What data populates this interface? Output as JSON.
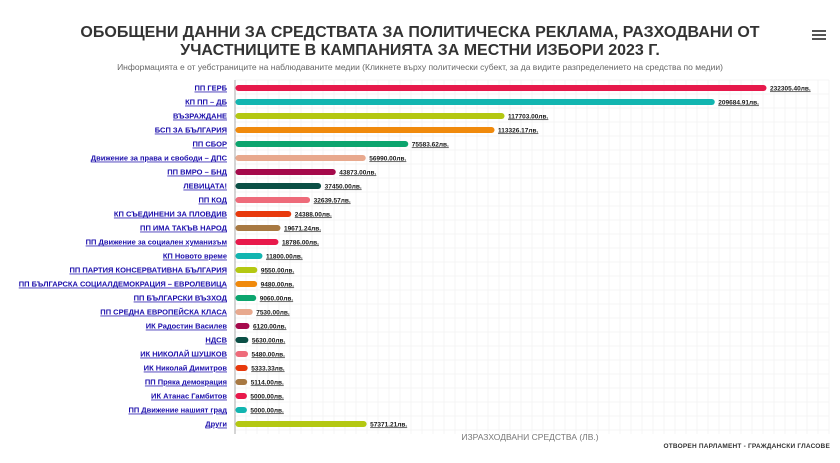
{
  "header": {
    "title": "ОБОБЩЕНИ ДАННИ ЗА СРЕДСТВАТА ЗА ПОЛИТИЧЕСКА РЕКЛАМА, РАЗХОДВАНИ ОТ УЧАСТНИЦИТЕ В КАМПАНИЯТА ЗА МЕСТНИ ИЗБОРИ 2023 Г.",
    "subtitle": "Информацията е от уебстраниците на наблюдаваните медии (Кликнете върху политически субект, за да видите разпределението на средства по медии)",
    "menu_icon": "hamburger-menu-icon"
  },
  "footer": {
    "credit": "ОТВОРЕН ПАРЛАМЕНТ - ГРАЖДАНСКИ ГЛАСОВЕ"
  },
  "chart_data": {
    "type": "bar",
    "orientation": "horizontal",
    "title": "ОБОБЩЕНИ ДАННИ ЗА СРЕДСТВАТА ЗА ПОЛИТИЧЕСКА РЕКЛАМА, РАЗХОДВАНИ ОТ УЧАСТНИЦИТЕ В КАМПАНИЯТА ЗА МЕСТНИ ИЗБОРИ 2023 Г.",
    "xlabel": "ИЗРАЗХОДВАНИ СРЕДСТВА (ЛВ.)",
    "ylabel": "",
    "grid": true,
    "xlim": [
      0,
      232305.4
    ],
    "categories": [
      "ПП ГЕРБ",
      "КП ПП – ДБ",
      "ВЪЗРАЖДАНЕ",
      "БСП ЗА БЪЛГАРИЯ",
      "ПП СБОР",
      "Движение за права и свободи – ДПС",
      "ПП ВМРО – БНД",
      "ЛЕВИЦАТА!",
      "ПП КОД",
      "КП СЪЕДИНЕНИ ЗА ПЛОВДИВ",
      "ПП ИМА ТАКЪВ НАРОД",
      "ПП Движение за социален хуманизъм",
      "КП Новото време",
      "ПП ПАРТИЯ КОНСЕРВАТИВНА БЪЛГАРИЯ",
      "ПП БЪЛГАРСКА СОЦИАЛДЕМОКРАЦИЯ – ЕВРОЛЕВИЦА",
      "ПП БЪЛГАРСКИ ВЪЗХОД",
      "ПП СРЕДНА ЕВРОПЕЙСКА КЛАСА",
      "ИК Радостин Василев",
      "НДСВ",
      "ИК НИКОЛАЙ ШУШКОВ",
      "ИК Николай Димитров",
      "ПП Пряка демокрация",
      "ИК Атанас Гамбитов",
      "ПП Движение нашият град",
      "Други"
    ],
    "values": [
      232305.4,
      209684.91,
      117703.0,
      113326.17,
      75583.62,
      56990.0,
      43873.0,
      37450.0,
      32639.57,
      24388.0,
      19671.24,
      18786.0,
      11800.0,
      9550.0,
      9480.0,
      9060.0,
      7530.0,
      6120.0,
      5630.0,
      5480.0,
      5333.33,
      5114.0,
      5000.0,
      5000.0,
      57371.21
    ],
    "value_labels": [
      "232305.40лв.",
      "209684.91лв.",
      "117703.00лв.",
      "113326.17лв.",
      "75583.62лв.",
      "56990.00лв.",
      "43873.00лв.",
      "37450.00лв.",
      "32639.57лв.",
      "24388.00лв.",
      "19671.24лв.",
      "18786.00лв.",
      "11800.00лв.",
      "9550.00лв.",
      "9480.00лв.",
      "9060.00лв.",
      "7530.00лв.",
      "6120.00лв.",
      "5630.00лв.",
      "5480.00лв.",
      "5333.33лв.",
      "5114.00лв.",
      "5000.00лв.",
      "5000.00лв.",
      "57371.21лв."
    ],
    "colors": [
      "#e6194b",
      "#12b5b0",
      "#b4c812",
      "#f08a0c",
      "#0ca56e",
      "#e8a98e",
      "#a50a4b",
      "#0b4f45",
      "#ee6b7a",
      "#e8390c",
      "#a87942",
      "#e8194b",
      "#12b5b0",
      "#b4c812",
      "#f08a0c",
      "#0ca56e",
      "#e8a98e",
      "#a50a4b",
      "#0b4f45",
      "#ee6b7a",
      "#e8390c",
      "#a87942",
      "#e8194b",
      "#12b5b0",
      "#b4c812"
    ]
  }
}
